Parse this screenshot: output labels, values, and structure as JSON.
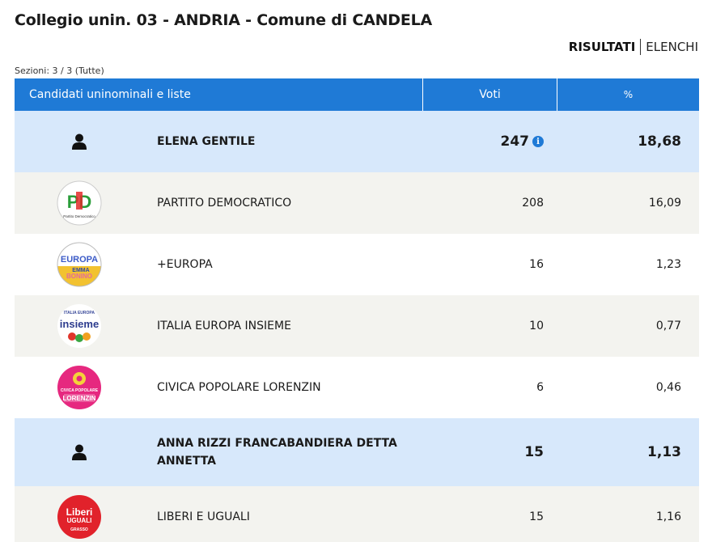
{
  "title": "Collegio unin. 03 - ANDRIA - Comune di CANDELA",
  "view_switch": {
    "active": "RISULTATI",
    "inactive": "ELENCHI"
  },
  "sezioni": "Sezioni: 3 / 3 (Tutte)",
  "table": {
    "headers": {
      "candidates": "Candidati uninominali e liste",
      "votes": "Voti",
      "percent": "%"
    },
    "rows": [
      {
        "kind": "candidate",
        "name": "ELENA GENTILE",
        "votes": "247",
        "percent": "18,68",
        "icon": "person-icon",
        "info": "i"
      },
      {
        "kind": "list",
        "name": "PARTITO DEMOCRATICO",
        "votes": "208",
        "percent": "16,09",
        "icon": "pd-logo",
        "logo_text": [
          "PD",
          "Partito Democratico"
        ]
      },
      {
        "kind": "list",
        "name": "+EUROPA",
        "votes": "16",
        "percent": "1,23",
        "icon": "piu-europa-logo",
        "logo_text": [
          "EUROPA",
          "EMMA",
          "BONINO"
        ]
      },
      {
        "kind": "list",
        "name": "ITALIA EUROPA INSIEME",
        "votes": "10",
        "percent": "0,77",
        "icon": "insieme-logo",
        "logo_text": [
          "ITALIA EUROPA",
          "insieme"
        ]
      },
      {
        "kind": "list",
        "name": "CIVICA POPOLARE LORENZIN",
        "votes": "6",
        "percent": "0,46",
        "icon": "civica-popolare-logo",
        "logo_text": [
          "CIVICA POPOLARE",
          "LORENZIN"
        ]
      },
      {
        "kind": "candidate",
        "name": "ANNA RIZZI FRANCABANDIERA DETTA ANNETTA",
        "votes": "15",
        "percent": "1,13",
        "icon": "person-icon"
      },
      {
        "kind": "list",
        "name": "LIBERI E UGUALI",
        "votes": "15",
        "percent": "1,16",
        "icon": "leu-logo",
        "logo_text": [
          "Liberi",
          "UGUALI",
          "GRASSO"
        ]
      }
    ]
  },
  "colors": {
    "header_blue": "#1f7ad6",
    "candidate_row": "#d7e8fb",
    "list_row": "#f3f3ef"
  }
}
